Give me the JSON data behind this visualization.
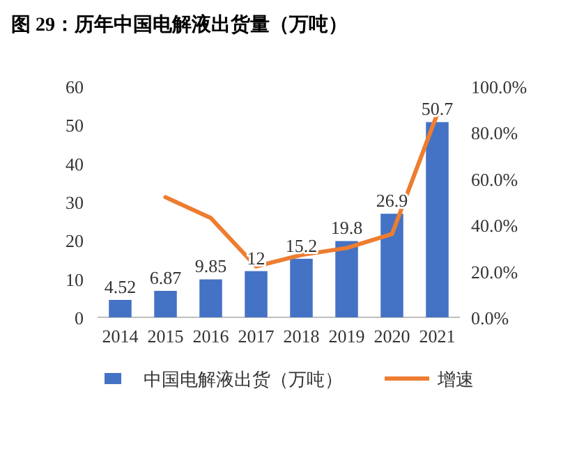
{
  "chart_data": {
    "type": "bar",
    "title": "图 29：历年中国电解液出货量（万吨）",
    "categories": [
      "2014",
      "2015",
      "2016",
      "2017",
      "2018",
      "2019",
      "2020",
      "2021"
    ],
    "series": [
      {
        "name": "中国电解液出货（万吨）",
        "color": "#4472c4",
        "values": [
          4.52,
          6.87,
          9.85,
          12,
          15.2,
          19.8,
          26.9,
          50.7
        ],
        "value_labels": [
          "4.52",
          "6.87",
          "9.85",
          "12",
          "15.2",
          "19.8",
          "26.9",
          "50.7"
        ]
      },
      {
        "type": "line",
        "name": "增速",
        "color": "#ed7d31",
        "axis": "y2",
        "values": [
          null,
          52,
          43,
          22,
          27,
          30,
          36,
          88
        ]
      }
    ],
    "ylim": [
      0,
      60
    ],
    "yticks": [
      0,
      10,
      20,
      30,
      40,
      50,
      60
    ],
    "y2lim": [
      0,
      100
    ],
    "y2ticks": [
      {
        "value": 0,
        "label": "0.0%"
      },
      {
        "value": 20,
        "label": "20.0%"
      },
      {
        "value": 40,
        "label": "40.0%"
      },
      {
        "value": 60,
        "label": "60.0%"
      },
      {
        "value": 80,
        "label": "80.0%"
      },
      {
        "value": 100,
        "label": "100.0%"
      }
    ],
    "legend": "bottom"
  }
}
